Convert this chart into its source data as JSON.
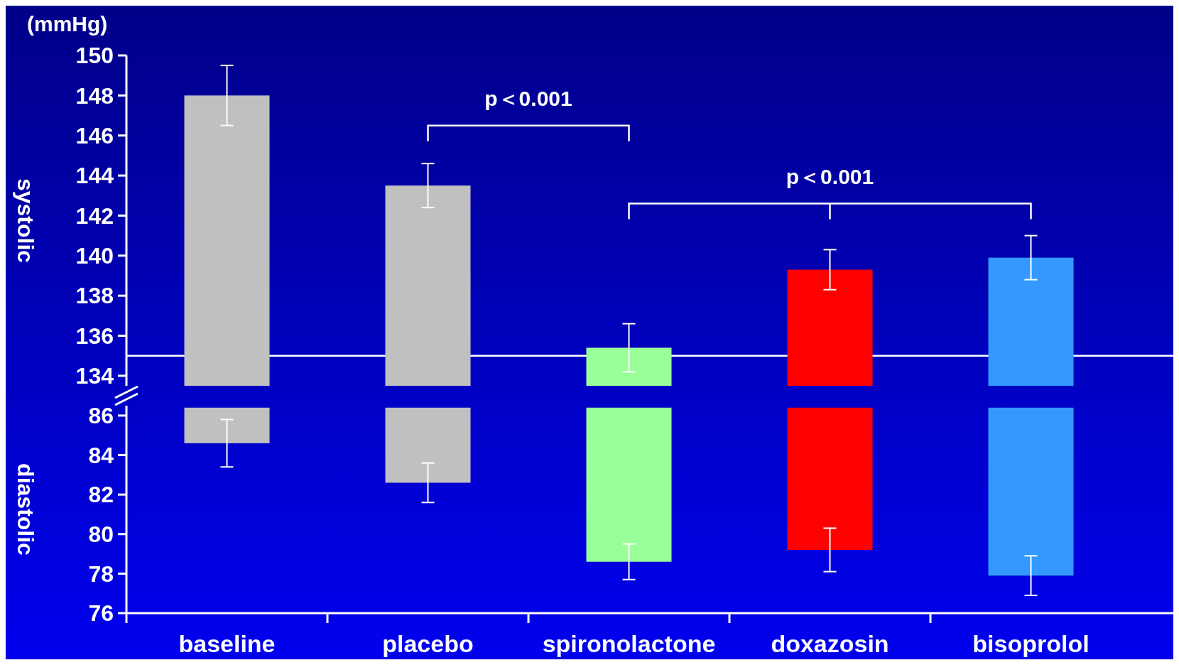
{
  "chart_data": [
    {
      "type": "bar",
      "ylabel": "systolic",
      "values": [
        148.0,
        143.5,
        135.4,
        139.3,
        139.9
      ],
      "errors": [
        1.5,
        1.1,
        1.2,
        1.0,
        1.1
      ],
      "colors": [
        "#c0c0c0",
        "#c0c0c0",
        "#99ff99",
        "#ff0000",
        "#3399ff"
      ],
      "ylim": [
        133.5,
        150
      ],
      "yticks": [
        134,
        136,
        138,
        140,
        142,
        144,
        146,
        148,
        150
      ],
      "tick_labels": "y",
      "ref_lines": [
        {
          "axis": "y",
          "value": 135,
          "color": "#ffffff"
        }
      ],
      "annotations": [
        "(mmHg)",
        "p＜0.001",
        "p＜0.001"
      ]
    },
    {
      "type": "bar",
      "ylabel": "diastolic",
      "categories": [
        "baseline",
        "placebo",
        "spironolactone",
        "doxazosin",
        "bisoprolol"
      ],
      "base": [
        86.4,
        86.4,
        86.4,
        86.4,
        86.4
      ],
      "values": [
        -1.8,
        -3.8,
        -7.8,
        -7.2,
        -8.5
      ],
      "errors": [
        1.2,
        1.0,
        0.9,
        1.1,
        1.0
      ],
      "colors": [
        "#c0c0c0",
        "#c0c0c0",
        "#99ff99",
        "#ff0000",
        "#3399ff"
      ],
      "ylim": [
        76,
        86.5
      ],
      "yticks": [
        76,
        78,
        80,
        82,
        84,
        86
      ]
    }
  ]
}
